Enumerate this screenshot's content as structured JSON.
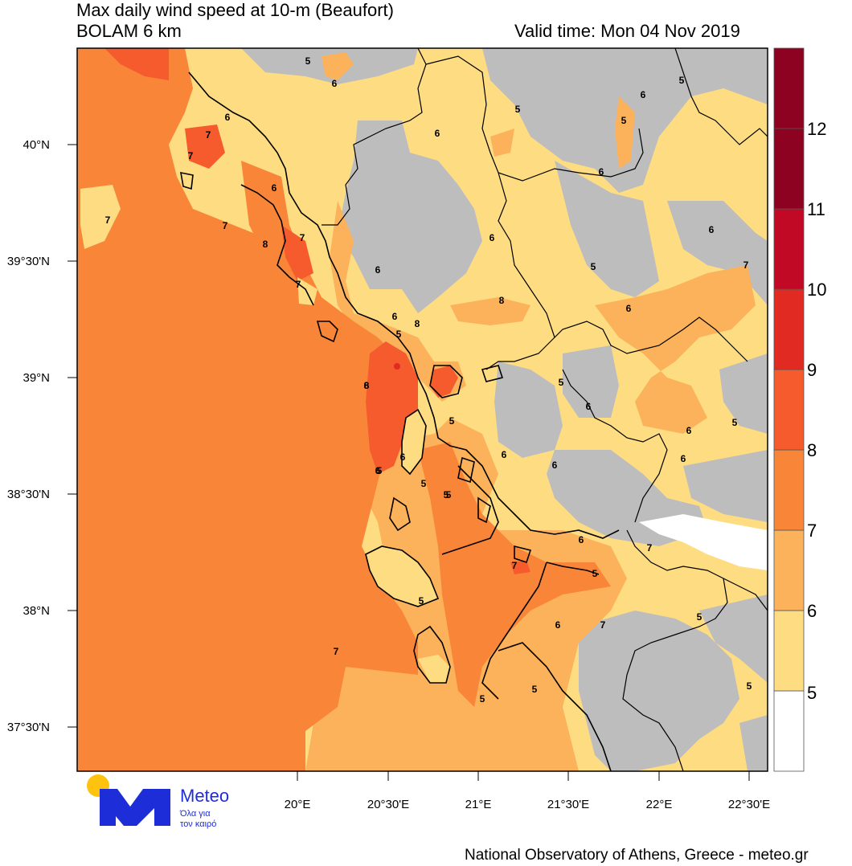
{
  "header": {
    "title": "Max daily wind speed at 10-m (Beaufort)",
    "model": "BOLAM 6 km",
    "valid_time": "Valid time: Mon 04 Nov 2019"
  },
  "axes": {
    "lat_labels": [
      "40°N",
      "39°30'N",
      "39°N",
      "38°30'N",
      "38°N",
      "37°30'N"
    ],
    "lon_labels": [
      "20°E",
      "20°30'E",
      "21°E",
      "21°30'E",
      "22°E",
      "22°30'E"
    ]
  },
  "colorbar": {
    "labels": [
      "5",
      "6",
      "7",
      "8",
      "9",
      "10",
      "11",
      "12"
    ],
    "colors": [
      "#ffffff",
      "#fddc82",
      "#fbb25a",
      "#f98539",
      "#f65b2e",
      "#e12a22",
      "#c10824",
      "#8d0121"
    ]
  },
  "map": {
    "land_no_data_color": "#bdbdbd",
    "contour_labels": [
      "5",
      "6",
      "5",
      "6",
      "5",
      "6",
      "7",
      "7",
      "6",
      "5",
      "6",
      "6",
      "7",
      "8",
      "7",
      "7",
      "6",
      "7",
      "6",
      "5",
      "6",
      "7",
      "8",
      "6",
      "6",
      "8",
      "5",
      "6",
      "5",
      "5",
      "6",
      "6",
      "6",
      "5",
      "6",
      "6",
      "5",
      "6",
      "5",
      "7",
      "6",
      "5",
      "5",
      "7",
      "5",
      "7",
      "5",
      "5",
      "6",
      "5",
      "5",
      "7",
      "6",
      "8",
      "5"
    ]
  },
  "footer": {
    "credit": "National Observatory of Athens, Greece - meteo.gr"
  },
  "logo": {
    "brand": "Meteo",
    "tagline_1": "Όλα για",
    "tagline_2": "τον καιρό"
  }
}
